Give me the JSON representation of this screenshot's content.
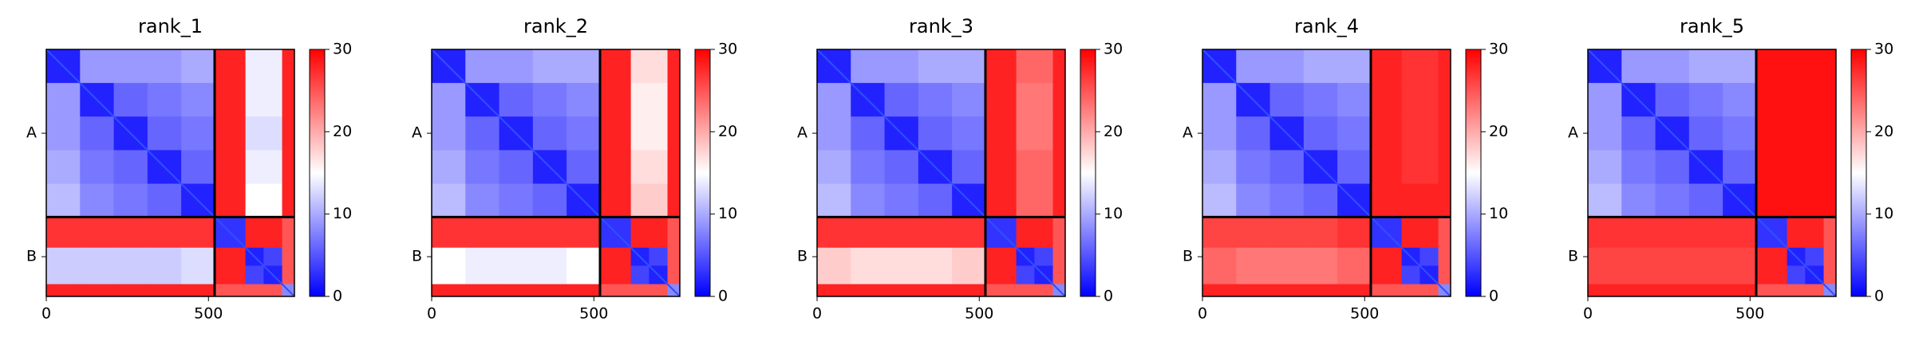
{
  "chart_data": [
    {
      "type": "heatmap",
      "title": "rank_1",
      "xlim": [
        0,
        765
      ],
      "xticks": [
        0,
        500
      ],
      "bins": [
        0,
        104,
        208,
        312,
        416,
        519,
        614,
        670,
        727,
        765
      ],
      "chains": [
        {
          "label": "A",
          "start": 0,
          "end": 519
        },
        {
          "label": "B",
          "start": 519,
          "end": 765
        }
      ],
      "clim": [
        0,
        30
      ],
      "cticks": [
        0,
        10,
        20,
        30
      ],
      "colormap": [
        "#0000ff",
        "#ffffff",
        "#ff0000"
      ],
      "matrix": [
        [
          2,
          9,
          9,
          9,
          10,
          28,
          14,
          14,
          28
        ],
        [
          9,
          2,
          6,
          7,
          8,
          28,
          14,
          14,
          28
        ],
        [
          9,
          6,
          2,
          6,
          7,
          28,
          13,
          13,
          28
        ],
        [
          10,
          7,
          6,
          2,
          6,
          28,
          14,
          14,
          28
        ],
        [
          11,
          8,
          7,
          6,
          2,
          28,
          15,
          15,
          28
        ],
        [
          27,
          27,
          27,
          27,
          27,
          3,
          28,
          28,
          25
        ],
        [
          12,
          12,
          12,
          12,
          13,
          28,
          2,
          4,
          25
        ],
        [
          12,
          12,
          12,
          12,
          13,
          28,
          4,
          2,
          25
        ],
        [
          28,
          28,
          28,
          28,
          28,
          25,
          25,
          25,
          8
        ]
      ]
    },
    {
      "type": "heatmap",
      "title": "rank_2",
      "xlim": [
        0,
        765
      ],
      "xticks": [
        0,
        500
      ],
      "bins": [
        0,
        104,
        208,
        312,
        416,
        519,
        614,
        670,
        727,
        765
      ],
      "chains": [
        {
          "label": "A",
          "start": 0,
          "end": 519
        },
        {
          "label": "B",
          "start": 519,
          "end": 765
        }
      ],
      "clim": [
        0,
        30
      ],
      "cticks": [
        0,
        10,
        20,
        30
      ],
      "colormap": [
        "#0000ff",
        "#ffffff",
        "#ff0000"
      ],
      "matrix": [
        [
          2,
          9,
          9,
          10,
          10,
          28,
          17,
          17,
          28
        ],
        [
          9,
          2,
          6,
          7,
          8,
          28,
          16,
          16,
          28
        ],
        [
          9,
          6,
          2,
          6,
          7,
          28,
          16,
          16,
          28
        ],
        [
          10,
          7,
          6,
          2,
          6,
          28,
          17,
          17,
          28
        ],
        [
          11,
          8,
          7,
          6,
          2,
          28,
          18,
          18,
          28
        ],
        [
          27,
          27,
          27,
          27,
          27,
          3,
          28,
          28,
          25
        ],
        [
          15,
          14,
          14,
          14,
          15,
          28,
          2,
          4,
          25
        ],
        [
          15,
          14,
          14,
          14,
          15,
          28,
          4,
          2,
          25
        ],
        [
          28,
          28,
          28,
          28,
          28,
          25,
          25,
          25,
          8
        ]
      ]
    },
    {
      "type": "heatmap",
      "title": "rank_3",
      "xlim": [
        0,
        765
      ],
      "xticks": [
        0,
        500
      ],
      "bins": [
        0,
        104,
        208,
        312,
        416,
        519,
        614,
        670,
        727,
        765
      ],
      "chains": [
        {
          "label": "A",
          "start": 0,
          "end": 519
        },
        {
          "label": "B",
          "start": 519,
          "end": 765
        }
      ],
      "clim": [
        0,
        30
      ],
      "cticks": [
        0,
        10,
        20,
        30
      ],
      "colormap": [
        "#0000ff",
        "#ffffff",
        "#ff0000"
      ],
      "matrix": [
        [
          2,
          9,
          9,
          10,
          10,
          28,
          24,
          24,
          28
        ],
        [
          9,
          2,
          6,
          7,
          8,
          28,
          23,
          23,
          28
        ],
        [
          9,
          6,
          2,
          6,
          7,
          28,
          23,
          23,
          28
        ],
        [
          10,
          7,
          6,
          2,
          6,
          28,
          24,
          24,
          28
        ],
        [
          11,
          8,
          7,
          6,
          2,
          28,
          24,
          24,
          28
        ],
        [
          27,
          27,
          27,
          27,
          27,
          3,
          28,
          28,
          25
        ],
        [
          18,
          17,
          17,
          17,
          18,
          28,
          2,
          4,
          25
        ],
        [
          18,
          17,
          17,
          17,
          18,
          28,
          4,
          2,
          25
        ],
        [
          28,
          28,
          28,
          28,
          28,
          25,
          25,
          25,
          8
        ]
      ]
    },
    {
      "type": "heatmap",
      "title": "rank_4",
      "xlim": [
        0,
        765
      ],
      "xticks": [
        0,
        500
      ],
      "bins": [
        0,
        104,
        208,
        312,
        416,
        519,
        614,
        670,
        727,
        765
      ],
      "chains": [
        {
          "label": "A",
          "start": 0,
          "end": 519
        },
        {
          "label": "B",
          "start": 519,
          "end": 765
        }
      ],
      "clim": [
        0,
        30
      ],
      "cticks": [
        0,
        10,
        20,
        30
      ],
      "colormap": [
        "#0000ff",
        "#ffffff",
        "#ff0000"
      ],
      "matrix": [
        [
          2,
          9,
          9,
          10,
          10,
          28,
          27,
          27,
          28
        ],
        [
          9,
          2,
          6,
          7,
          8,
          28,
          27,
          27,
          28
        ],
        [
          9,
          6,
          2,
          6,
          7,
          28,
          27,
          27,
          28
        ],
        [
          10,
          7,
          6,
          2,
          6,
          28,
          27,
          27,
          28
        ],
        [
          11,
          8,
          7,
          6,
          2,
          28,
          28,
          28,
          28
        ],
        [
          26,
          26,
          26,
          26,
          27,
          3,
          28,
          28,
          25
        ],
        [
          24,
          23,
          23,
          23,
          24,
          28,
          2,
          4,
          25
        ],
        [
          24,
          23,
          23,
          23,
          24,
          28,
          4,
          2,
          25
        ],
        [
          28,
          28,
          28,
          28,
          28,
          25,
          25,
          25,
          8
        ]
      ]
    },
    {
      "type": "heatmap",
      "title": "rank_5",
      "xlim": [
        0,
        765
      ],
      "xticks": [
        0,
        500
      ],
      "bins": [
        0,
        104,
        208,
        312,
        416,
        519,
        614,
        670,
        727,
        765
      ],
      "chains": [
        {
          "label": "A",
          "start": 0,
          "end": 519
        },
        {
          "label": "B",
          "start": 519,
          "end": 765
        }
      ],
      "clim": [
        0,
        30
      ],
      "cticks": [
        0,
        10,
        20,
        30
      ],
      "colormap": [
        "#0000ff",
        "#ffffff",
        "#ff0000"
      ],
      "matrix": [
        [
          2,
          9,
          9,
          10,
          10,
          29,
          29,
          29,
          29
        ],
        [
          9,
          2,
          6,
          7,
          8,
          29,
          29,
          29,
          29
        ],
        [
          9,
          6,
          2,
          6,
          7,
          29,
          29,
          29,
          29
        ],
        [
          10,
          7,
          6,
          2,
          6,
          29,
          29,
          29,
          29
        ],
        [
          11,
          8,
          7,
          6,
          2,
          29,
          29,
          29,
          29
        ],
        [
          27,
          27,
          27,
          27,
          27,
          3,
          28,
          28,
          25
        ],
        [
          26,
          26,
          26,
          26,
          26,
          28,
          2,
          4,
          25
        ],
        [
          26,
          26,
          26,
          26,
          26,
          28,
          4,
          2,
          25
        ],
        [
          28,
          28,
          28,
          28,
          28,
          25,
          25,
          25,
          8
        ]
      ]
    }
  ]
}
